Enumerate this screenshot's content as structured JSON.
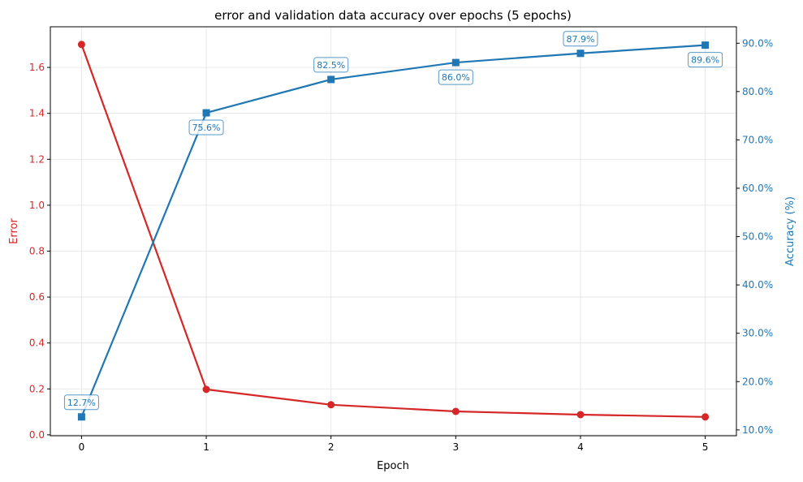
{
  "chart_data": {
    "type": "line",
    "title": "error and validation data accuracy over epochs (5 epochs)",
    "xlabel": "Epoch",
    "ylabel_left": "Error",
    "ylabel_right": "Accuracy (%)",
    "x": [
      0,
      1,
      2,
      3,
      4,
      5
    ],
    "xlim": [
      -0.25,
      5.25
    ],
    "ylim_left": [
      -0.004,
      1.777
    ],
    "ylim_right": [
      8.8,
      93.4
    ],
    "x_ticks": [
      "0",
      "1",
      "2",
      "3",
      "4",
      "5"
    ],
    "y_ticks_left": [
      "0.0",
      "0.2",
      "0.4",
      "0.6",
      "0.8",
      "1.0",
      "1.2",
      "1.4",
      "1.6"
    ],
    "y_ticks_right": [
      "10.0%",
      "20.0%",
      "30.0%",
      "40.0%",
      "50.0%",
      "60.0%",
      "70.0%",
      "80.0%",
      "90.0%"
    ],
    "grid": true,
    "series": [
      {
        "axis": "left",
        "marker": "circle",
        "color": "#d62728",
        "values": [
          1.7,
          0.198,
          0.131,
          0.102,
          0.088,
          0.078
        ]
      },
      {
        "axis": "right",
        "marker": "square",
        "color": "#1f77b4",
        "values": [
          12.7,
          75.6,
          82.5,
          86.0,
          87.9,
          89.6
        ],
        "data_labels": [
          "12.7%",
          "75.6%",
          "82.5%",
          "86.0%",
          "87.9%",
          "89.6%"
        ]
      }
    ]
  }
}
